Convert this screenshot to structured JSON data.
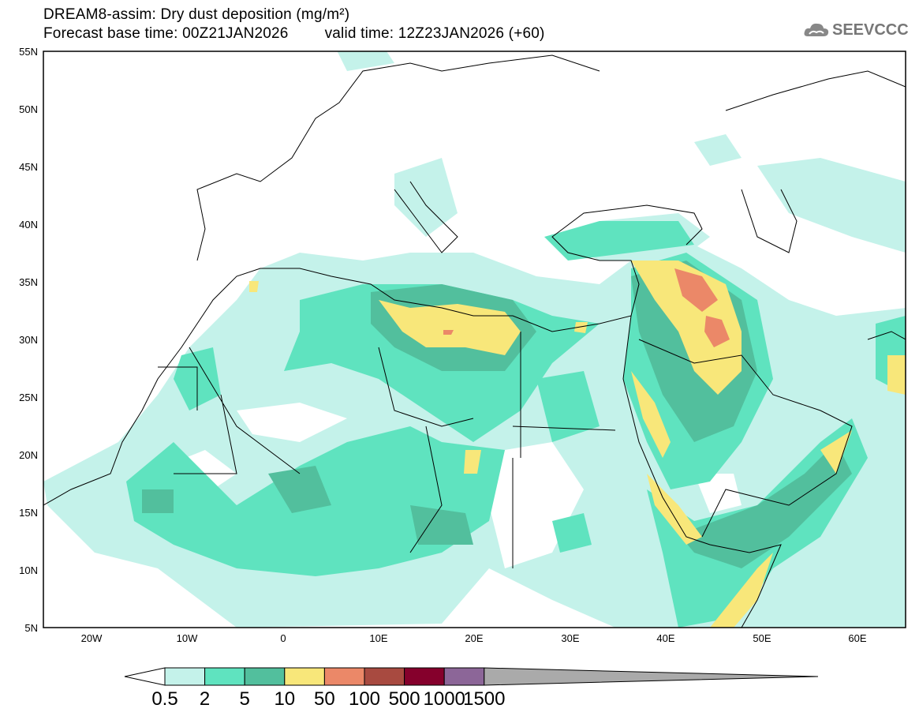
{
  "header": {
    "title": "DREAM8-assim: Dry dust deposition (mg/m²)",
    "base_time": "Forecast base time: 00Z21JAN2026",
    "valid_time": "valid time: 12Z23JAN2026 (+60)",
    "logo": "SEEVCCC"
  },
  "map": {
    "lon_range": [
      -25,
      65
    ],
    "lat_range": [
      5,
      55
    ],
    "lat_labels": [
      "55N",
      "50N",
      "45N",
      "40N",
      "35N",
      "30N",
      "25N",
      "20N",
      "15N",
      "10N",
      "5N"
    ],
    "lon_labels": [
      "20W",
      "10W",
      "0",
      "10E",
      "20E",
      "30E",
      "40E",
      "50E",
      "60E"
    ]
  },
  "legend": {
    "labels": [
      "0.5",
      "2",
      "5",
      "10",
      "50",
      "100",
      "500",
      "1000",
      "1500"
    ],
    "colors": [
      "#c4f2ea",
      "#5fe3bf",
      "#52bf9d",
      "#f8e77a",
      "#eb8868",
      "#a84a40",
      "#85002c",
      "#8c6698"
    ],
    "under_color": "#ffffff",
    "over_color": "#aaaaaa"
  }
}
